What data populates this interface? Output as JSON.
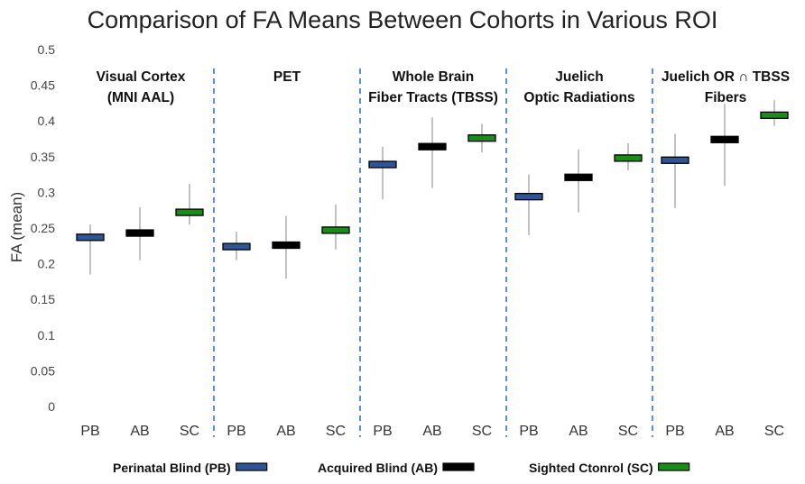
{
  "chart_data": {
    "type": "box",
    "title": "Comparison of FA Means Between Cohorts in Various ROI",
    "ylabel": "FA (mean)",
    "xlabel": "",
    "ylim": [
      0,
      0.5
    ],
    "y_ticks": [
      "0",
      "0.05",
      "0.1",
      "0.15",
      "0.2",
      "0.25",
      "0.3",
      "0.35",
      "0.4",
      "0.45",
      "0.5"
    ],
    "grid": false,
    "cohorts": [
      {
        "code": "PB",
        "name": "Perinatal Blind (PB)",
        "color": "#2f5597"
      },
      {
        "code": "AB",
        "name": "Acquired Blind (AB)",
        "color": "#000000"
      },
      {
        "code": "SC",
        "name": "Sighted Ctonrol (SC)",
        "color": "#1a8c1a"
      }
    ],
    "panels": [
      {
        "label_lines": [
          "Visual Cortex",
          "(MNI AAL)"
        ],
        "groups": [
          {
            "cohort": "PB",
            "mean": 0.237,
            "min": 0.185,
            "max": 0.255
          },
          {
            "cohort": "AB",
            "mean": 0.243,
            "min": 0.205,
            "max": 0.279
          },
          {
            "cohort": "SC",
            "mean": 0.272,
            "min": 0.255,
            "max": 0.312
          }
        ]
      },
      {
        "label_lines": [
          "PET"
        ],
        "groups": [
          {
            "cohort": "PB",
            "mean": 0.224,
            "min": 0.205,
            "max": 0.245
          },
          {
            "cohort": "AB",
            "mean": 0.226,
            "min": 0.179,
            "max": 0.267
          },
          {
            "cohort": "SC",
            "mean": 0.247,
            "min": 0.22,
            "max": 0.283
          }
        ]
      },
      {
        "label_lines": [
          "Whole Brain",
          "Fiber Tracts (TBSS)"
        ],
        "groups": [
          {
            "cohort": "PB",
            "mean": 0.339,
            "min": 0.29,
            "max": 0.364
          },
          {
            "cohort": "AB",
            "mean": 0.364,
            "min": 0.306,
            "max": 0.405
          },
          {
            "cohort": "SC",
            "mean": 0.376,
            "min": 0.356,
            "max": 0.396
          }
        ]
      },
      {
        "label_lines": [
          "Juelich",
          "Optic Radiations"
        ],
        "groups": [
          {
            "cohort": "PB",
            "mean": 0.294,
            "min": 0.24,
            "max": 0.325
          },
          {
            "cohort": "AB",
            "mean": 0.321,
            "min": 0.272,
            "max": 0.36
          },
          {
            "cohort": "SC",
            "mean": 0.348,
            "min": 0.331,
            "max": 0.369
          }
        ]
      },
      {
        "label_lines": [
          "Juelich OR ∩ TBSS",
          "Fibers"
        ],
        "groups": [
          {
            "cohort": "PB",
            "mean": 0.345,
            "min": 0.278,
            "max": 0.382
          },
          {
            "cohort": "AB",
            "mean": 0.374,
            "min": 0.309,
            "max": 0.424
          },
          {
            "cohort": "SC",
            "mean": 0.408,
            "min": 0.393,
            "max": 0.429
          }
        ]
      }
    ]
  }
}
